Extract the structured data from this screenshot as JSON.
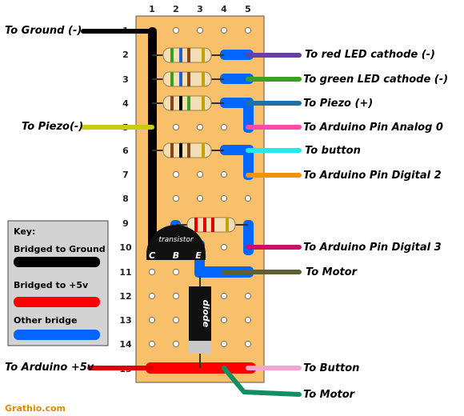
{
  "columns": [
    "1",
    "2",
    "3",
    "4",
    "5"
  ],
  "rows": [
    "1",
    "2",
    "3",
    "4",
    "5",
    "6",
    "7",
    "8",
    "9",
    "10",
    "11",
    "12",
    "13",
    "14",
    "15"
  ],
  "left_labels": {
    "ground": "To Ground (-)",
    "piezo_neg": "To Piezo(-)",
    "arduino_5v": "To Arduino +5v"
  },
  "right_labels": {
    "red_led": "To red LED cathode (-)",
    "green_led": "To green LED cathode (-)",
    "piezo_pos": "To Piezo (+)",
    "analog0": "To Arduino Pin Analog 0",
    "button": "To button",
    "digital2": "To Arduino Pin Digital 2",
    "digital3": "To Arduino Pin Digital 3",
    "motor": "To Motor",
    "button2": "To Button",
    "motor2": "To Motor"
  },
  "components": {
    "transistor": "transistor",
    "pins": [
      "C",
      "B",
      "E"
    ],
    "diode": "diode"
  },
  "key": {
    "title": "Key:",
    "ground": "Bridged to Ground",
    "plus5v": "Bridged to +5v",
    "other": "Other bridge"
  },
  "brand": "Grathio.com",
  "colors": {
    "board": "#f9c06c",
    "ground_bridge": "#000000",
    "plus5v_bridge": "#ff0000",
    "other_bridge": "#0066ff",
    "wire_purple": "#6b3fa0",
    "wire_green": "#3aa020",
    "wire_steelblue": "#1f6fa8",
    "wire_pink": "#ff4aa8",
    "wire_cyan": "#22e8f0",
    "wire_orange": "#f0920a",
    "wire_magenta": "#c8106a",
    "wire_olive": "#5f6030",
    "wire_lightpink": "#f5a3cf",
    "wire_teal": "#109060",
    "wire_yellow": "#c8cc10"
  }
}
